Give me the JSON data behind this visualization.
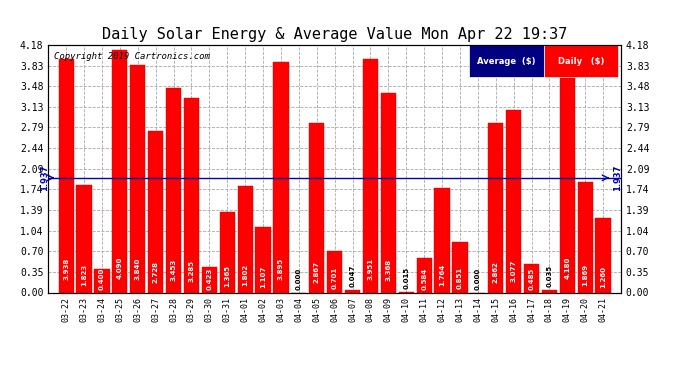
{
  "title": "Daily Solar Energy & Average Value Mon Apr 22 19:37",
  "copyright": "Copyright 2019 Cartronics.com",
  "categories": [
    "03-22",
    "03-23",
    "03-24",
    "03-25",
    "03-26",
    "03-27",
    "03-28",
    "03-29",
    "03-30",
    "03-31",
    "04-01",
    "04-02",
    "04-03",
    "04-04",
    "04-05",
    "04-06",
    "04-07",
    "04-08",
    "04-09",
    "04-10",
    "04-11",
    "04-12",
    "04-13",
    "04-14",
    "04-15",
    "04-16",
    "04-17",
    "04-18",
    "04-19",
    "04-20",
    "04-21"
  ],
  "values": [
    3.938,
    1.823,
    0.4,
    4.09,
    3.84,
    2.728,
    3.453,
    3.285,
    0.423,
    1.365,
    1.802,
    1.107,
    3.895,
    0.0,
    2.867,
    0.701,
    0.047,
    3.951,
    3.368,
    0.015,
    0.584,
    1.764,
    0.851,
    0.0,
    2.862,
    3.077,
    0.485,
    0.035,
    4.18,
    1.869,
    1.26
  ],
  "average_line": 1.937,
  "bar_color": "#FF0000",
  "bar_edge_color": "#CC0000",
  "average_line_color": "#0000BB",
  "background_color": "#FFFFFF",
  "plot_bg_color": "#FFFFFF",
  "grid_color": "#AAAAAA",
  "ylim": [
    0.0,
    4.18
  ],
  "yticks": [
    0.0,
    0.35,
    0.7,
    1.04,
    1.39,
    1.74,
    2.09,
    2.44,
    2.79,
    3.13,
    3.48,
    3.83,
    4.18
  ],
  "title_fontsize": 11,
  "legend_avg_color": "#000080",
  "legend_daily_color": "#FF0000",
  "avg_label": "1.937"
}
